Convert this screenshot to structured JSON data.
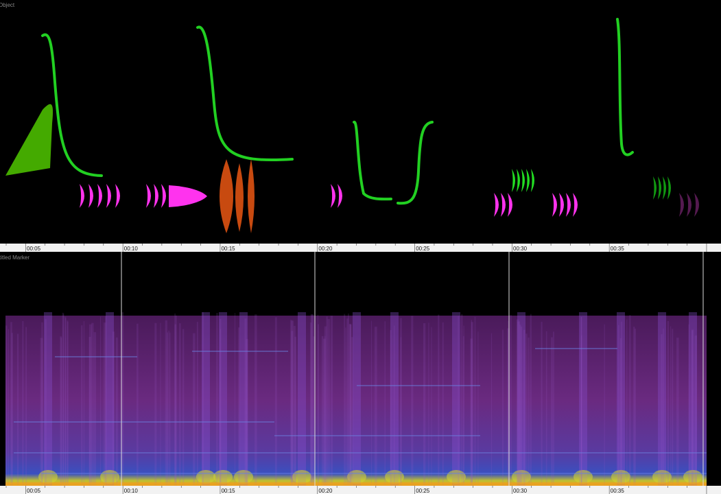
{
  "panels": {
    "object_label": "Object",
    "marker_label": "titled Marker"
  },
  "timeline": {
    "labels": [
      "00:05",
      "00:10",
      "00:15",
      "00:20",
      "00:25",
      "00:30",
      "00:35"
    ]
  }
}
